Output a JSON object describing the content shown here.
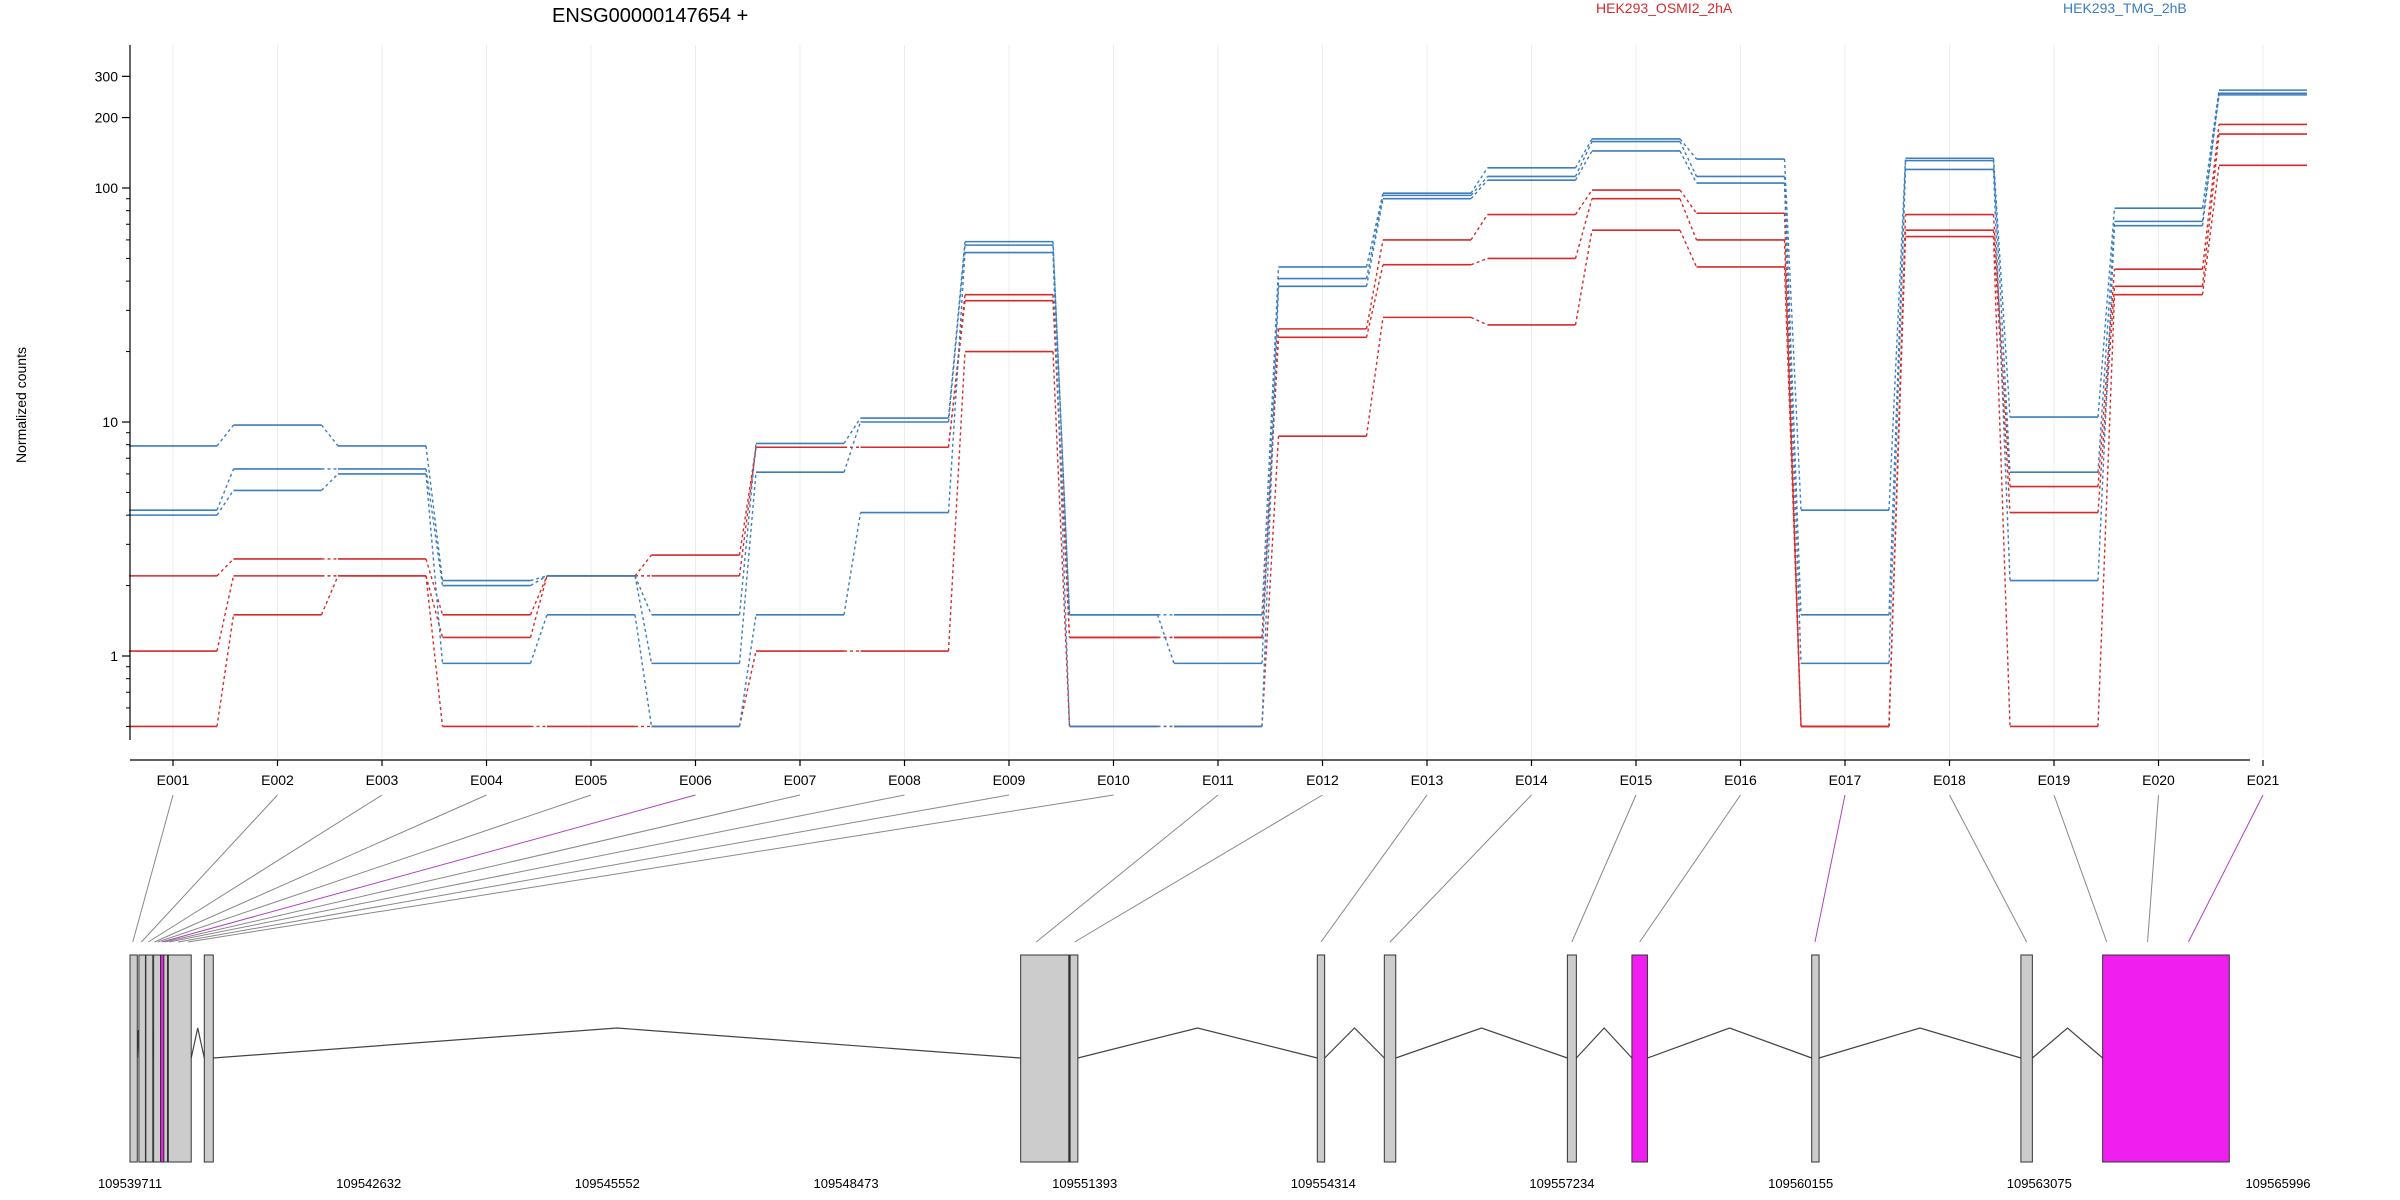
{
  "title": "ENSG00000147654 +",
  "colors": {
    "red": "#d62a2a",
    "blue": "#3b7dbd",
    "exon_fill": "#cccccc",
    "highlight_fill": "#f01ff0",
    "connector_highlight": "#b040c0"
  },
  "chart_data": {
    "type": "line",
    "title": "ENSG00000147654 +",
    "ylabel": "Normalized counts",
    "xlabel": "",
    "yscale": "log",
    "yticks": [
      1,
      10,
      100,
      200,
      300
    ],
    "ytick_labels": [
      "1",
      "10",
      "100",
      "200",
      "300"
    ],
    "grid": "vertical",
    "legend_position": "top-right",
    "categories": [
      "E001",
      "E002",
      "E003",
      "E004",
      "E005",
      "E006",
      "E007",
      "E008",
      "E009",
      "E010",
      "E011",
      "E012",
      "E013",
      "E014",
      "E015",
      "E016",
      "E017",
      "E018",
      "E019",
      "E020",
      "E021"
    ],
    "series": [
      {
        "name": "HEK293_OSMI2_2hA",
        "color": "#d62a2a",
        "values": [
          2.2,
          2.6,
          2.6,
          1.5,
          2.2,
          2.7,
          7.8,
          7.8,
          35,
          1.2,
          1.2,
          25,
          60,
          77,
          98,
          78,
          0.5,
          77,
          5.3,
          45,
          187
        ]
      },
      {
        "name": "",
        "color": "#d62a2a",
        "values": [
          1.05,
          2.2,
          2.2,
          1.2,
          2.2,
          2.2,
          7.8,
          7.8,
          33,
          1.2,
          1.2,
          23,
          47,
          50,
          90,
          60,
          0.5,
          66,
          4.1,
          38,
          170
        ]
      },
      {
        "name": "",
        "color": "#d62a2a",
        "values": [
          0.5,
          1.5,
          2.2,
          0.5,
          0.5,
          0.5,
          1.05,
          1.05,
          20,
          0.5,
          0.5,
          8.7,
          28,
          26,
          66,
          46,
          0.5,
          62,
          0.5,
          35,
          125
        ]
      },
      {
        "name": "HEK293_TMG_2hB",
        "color": "#3b7dbd",
        "values": [
          7.9,
          9.7,
          7.9,
          2.1,
          2.2,
          1.5,
          8.1,
          10.4,
          59,
          1.5,
          1.5,
          46,
          95,
          122,
          162,
          133,
          4.2,
          134,
          10.5,
          82,
          262
        ]
      },
      {
        "name": "",
        "color": "#3b7dbd",
        "values": [
          4.2,
          6.3,
          6.3,
          2.0,
          2.2,
          0.93,
          6.1,
          10.0,
          57,
          1.5,
          0.93,
          41,
          93,
          112,
          158,
          112,
          1.5,
          131,
          6.1,
          72,
          254
        ]
      },
      {
        "name": "",
        "color": "#3b7dbd",
        "values": [
          4.0,
          5.1,
          6.0,
          0.93,
          1.5,
          0.5,
          1.5,
          4.1,
          53,
          0.5,
          0.5,
          38,
          90,
          108,
          144,
          105,
          0.93,
          120,
          2.1,
          69,
          250
        ]
      }
    ]
  },
  "gene_model": {
    "coordinates": [
      109539711,
      109542632,
      109545552,
      109548473,
      109551393,
      109554314,
      109557234,
      109560155,
      109563075,
      109565996
    ],
    "coord_labels": [
      "109539711",
      "109542632",
      "109545552",
      "109548473",
      "109551393",
      "109554314",
      "109557234",
      "109560155",
      "109563075",
      "109565996"
    ],
    "exons": [
      {
        "start": 109539711,
        "end": 109539800,
        "highlight": false
      },
      {
        "start": 109539820,
        "end": 109539900,
        "highlight": false
      },
      {
        "start": 109539905,
        "end": 109539990,
        "highlight": false
      },
      {
        "start": 109540000,
        "end": 109540085,
        "highlight": false
      },
      {
        "start": 109540085,
        "end": 109540125,
        "highlight": true
      },
      {
        "start": 109540125,
        "end": 109540170,
        "highlight": false
      },
      {
        "start": 109540180,
        "end": 109540460,
        "highlight": false
      },
      {
        "start": 109540620,
        "end": 109540730,
        "highlight": false
      },
      {
        "start": 109550610,
        "end": 109551200,
        "highlight": false
      },
      {
        "start": 109551200,
        "end": 109551215,
        "highlight": false,
        "dark": true
      },
      {
        "start": 109551215,
        "end": 109551310,
        "highlight": false
      },
      {
        "start": 109554240,
        "end": 109554330,
        "highlight": false
      },
      {
        "start": 109555060,
        "end": 109555200,
        "highlight": false
      },
      {
        "start": 109557300,
        "end": 109557410,
        "highlight": false
      },
      {
        "start": 109558090,
        "end": 109558280,
        "highlight": true
      },
      {
        "start": 109560290,
        "end": 109560380,
        "highlight": false
      },
      {
        "start": 109562850,
        "end": 109562990,
        "highlight": false
      },
      {
        "start": 109563850,
        "end": 109565400,
        "highlight": true
      }
    ],
    "introns": [
      {
        "from": 109540460,
        "to": 109540620
      },
      {
        "from": 109540730,
        "to": 109550610
      },
      {
        "from": 109551310,
        "to": 109554240
      },
      {
        "from": 109554330,
        "to": 109555060
      },
      {
        "from": 109555200,
        "to": 109557300
      },
      {
        "from": 109557410,
        "to": 109558090
      },
      {
        "from": 109558280,
        "to": 109560290
      },
      {
        "from": 109560380,
        "to": 109562850
      },
      {
        "from": 109562990,
        "to": 109563850
      }
    ],
    "small_introns": [
      {
        "from": 109539800,
        "to": 109539820
      },
      {
        "from": 109539900,
        "to": 109539905
      },
      {
        "from": 109539990,
        "to": 109540000
      }
    ],
    "exon_bin_coords": [
      109539745,
      109539850,
      109539935,
      109540010,
      109540050,
      109540100,
      109540135,
      109540190,
      109540300,
      109540420,
      109550800,
      109551270,
      109554285,
      109555130,
      109557355,
      109558185,
      109560330,
      109562920,
      109563900,
      109564400,
      109564900
    ],
    "highlight_bins": [
      5,
      16,
      20
    ]
  }
}
